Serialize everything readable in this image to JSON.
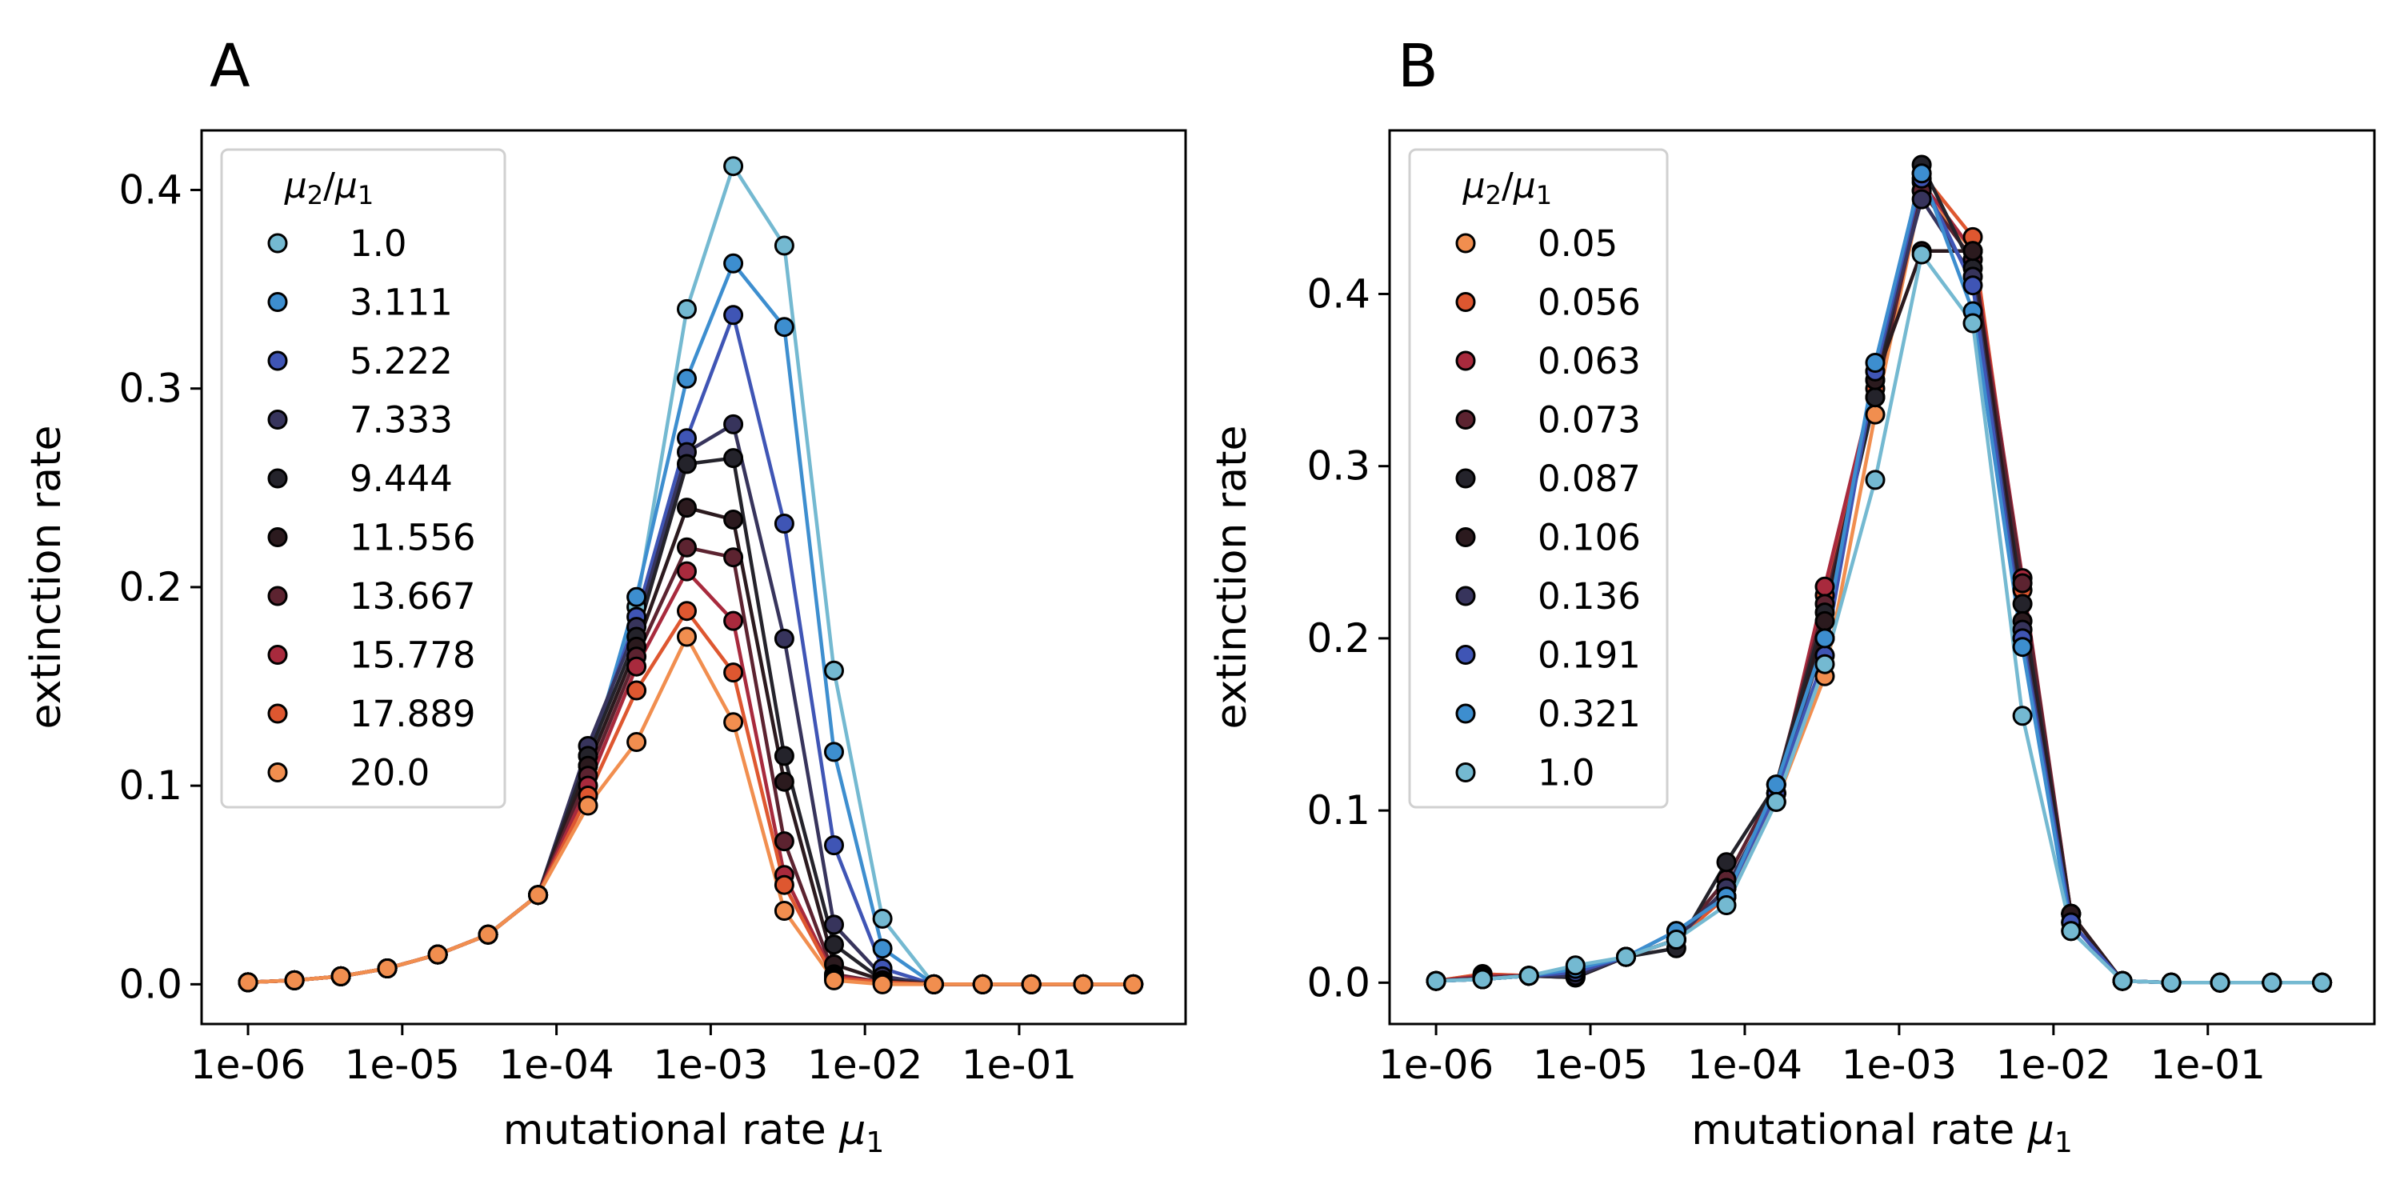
{
  "chart_data": [
    {
      "type": "line",
      "panel_label": "A",
      "xlabel": "mutational rate",
      "xlabel_symbol": "μ",
      "xlabel_sub": "1",
      "ylabel": "extinction rate",
      "xscale": "log",
      "xlim": [
        5e-07,
        1.2
      ],
      "ylim": [
        -0.02,
        0.43
      ],
      "xtick_values": [
        1e-06,
        1e-05,
        0.0001,
        0.001,
        0.01,
        0.1
      ],
      "xtick_labels": [
        "1e-06",
        "1e-05",
        "1e-04",
        "1e-03",
        "1e-02",
        "1e-01"
      ],
      "ytick_values": [
        0.0,
        0.1,
        0.2,
        0.3,
        0.4
      ],
      "ytick_labels": [
        "0.0",
        "0.1",
        "0.2",
        "0.3",
        "0.4"
      ],
      "x": [
        1e-06,
        2e-06,
        4e-06,
        8e-06,
        1.7e-05,
        3.6e-05,
        7.6e-05,
        0.00016,
        0.00033,
        0.0007,
        0.0014,
        0.003,
        0.0063,
        0.013,
        0.028,
        0.058,
        0.12,
        0.26,
        0.55
      ],
      "legend": {
        "title": "μ2/μ1",
        "title_symbol_a": "μ",
        "title_sub_a": "2",
        "title_symbol_b": "μ",
        "title_sub_b": "1",
        "placement": "upper-left"
      },
      "series": [
        {
          "name": "1.0",
          "color": "#74b9d1",
          "values": [
            0.001,
            0.002,
            0.004,
            0.008,
            0.015,
            0.025,
            0.045,
            0.11,
            0.19,
            0.34,
            0.412,
            0.372,
            0.158,
            0.033,
            0.0,
            0.0,
            0.0,
            0.0,
            0.0
          ]
        },
        {
          "name": "3.111",
          "color": "#3d8ecf",
          "values": [
            0.001,
            0.002,
            0.004,
            0.008,
            0.015,
            0.025,
            0.045,
            0.11,
            0.195,
            0.305,
            0.363,
            0.331,
            0.117,
            0.018,
            0.0,
            0.0,
            0.0,
            0.0,
            0.0
          ]
        },
        {
          "name": "5.222",
          "color": "#3f55b5",
          "values": [
            0.001,
            0.002,
            0.004,
            0.008,
            0.015,
            0.025,
            0.045,
            0.115,
            0.185,
            0.275,
            0.337,
            0.232,
            0.07,
            0.008,
            0.0,
            0.0,
            0.0,
            0.0,
            0.0
          ]
        },
        {
          "name": "7.333",
          "color": "#37345c",
          "values": [
            0.001,
            0.002,
            0.004,
            0.008,
            0.015,
            0.025,
            0.045,
            0.12,
            0.18,
            0.268,
            0.282,
            0.174,
            0.03,
            0.004,
            0.0,
            0.0,
            0.0,
            0.0,
            0.0
          ]
        },
        {
          "name": "9.444",
          "color": "#24232b",
          "values": [
            0.001,
            0.002,
            0.004,
            0.008,
            0.015,
            0.025,
            0.045,
            0.115,
            0.175,
            0.262,
            0.265,
            0.115,
            0.02,
            0.002,
            0.0,
            0.0,
            0.0,
            0.0,
            0.0
          ]
        },
        {
          "name": "11.556",
          "color": "#2b1a1e",
          "values": [
            0.001,
            0.002,
            0.004,
            0.008,
            0.015,
            0.025,
            0.045,
            0.11,
            0.17,
            0.24,
            0.234,
            0.102,
            0.01,
            0.002,
            0.0,
            0.0,
            0.0,
            0.0,
            0.0
          ]
        },
        {
          "name": "13.667",
          "color": "#5c2330",
          "values": [
            0.001,
            0.002,
            0.004,
            0.008,
            0.015,
            0.025,
            0.045,
            0.105,
            0.165,
            0.22,
            0.215,
            0.072,
            0.005,
            0.001,
            0.0,
            0.0,
            0.0,
            0.0,
            0.0
          ]
        },
        {
          "name": "15.778",
          "color": "#a82a3d",
          "values": [
            0.001,
            0.002,
            0.004,
            0.008,
            0.015,
            0.025,
            0.045,
            0.1,
            0.16,
            0.208,
            0.183,
            0.055,
            0.004,
            0.001,
            0.0,
            0.0,
            0.0,
            0.0,
            0.0
          ]
        },
        {
          "name": "17.889",
          "color": "#de5730",
          "values": [
            0.001,
            0.002,
            0.004,
            0.008,
            0.015,
            0.025,
            0.045,
            0.095,
            0.148,
            0.188,
            0.157,
            0.05,
            0.003,
            0.001,
            0.0,
            0.0,
            0.0,
            0.0,
            0.0
          ]
        },
        {
          "name": "20.0",
          "color": "#f18e4f",
          "values": [
            0.001,
            0.002,
            0.004,
            0.008,
            0.015,
            0.025,
            0.045,
            0.09,
            0.122,
            0.175,
            0.132,
            0.037,
            0.002,
            0.0,
            0.0,
            0.0,
            0.0,
            0.0,
            0.0
          ]
        }
      ]
    },
    {
      "type": "line",
      "panel_label": "B",
      "xlabel": "mutational rate",
      "xlabel_symbol": "μ",
      "xlabel_sub": "1",
      "ylabel": "extinction rate",
      "xscale": "log",
      "xlim": [
        5e-07,
        1.2
      ],
      "ylim": [
        -0.024,
        0.495
      ],
      "xtick_values": [
        1e-06,
        1e-05,
        0.0001,
        0.001,
        0.01,
        0.1
      ],
      "xtick_labels": [
        "1e-06",
        "1e-05",
        "1e-04",
        "1e-03",
        "1e-02",
        "1e-01"
      ],
      "ytick_values": [
        0.0,
        0.1,
        0.2,
        0.3,
        0.4
      ],
      "ytick_labels": [
        "0.0",
        "0.1",
        "0.2",
        "0.3",
        "0.4"
      ],
      "x": [
        1e-06,
        2e-06,
        4e-06,
        8e-06,
        1.7e-05,
        3.6e-05,
        7.6e-05,
        0.00016,
        0.00033,
        0.0007,
        0.0014,
        0.003,
        0.0063,
        0.013,
        0.028,
        0.058,
        0.12,
        0.26,
        0.55
      ],
      "legend": {
        "title": "μ2/μ1",
        "title_symbol_a": "μ",
        "title_sub_a": "2",
        "title_symbol_b": "μ",
        "title_sub_b": "1",
        "placement": "upper-left"
      },
      "series": [
        {
          "name": "0.05",
          "color": "#f18e4f",
          "values": [
            0.001,
            0.005,
            0.004,
            0.005,
            0.015,
            0.025,
            0.05,
            0.105,
            0.178,
            0.33,
            0.46,
            0.425,
            0.2,
            0.035,
            0.001,
            0.0,
            0.0,
            0.0,
            0.0
          ]
        },
        {
          "name": "0.056",
          "color": "#de5730",
          "values": [
            0.001,
            0.005,
            0.004,
            0.005,
            0.015,
            0.025,
            0.05,
            0.11,
            0.225,
            0.345,
            0.47,
            0.433,
            0.228,
            0.04,
            0.001,
            0.0,
            0.0,
            0.0,
            0.0
          ]
        },
        {
          "name": "0.063",
          "color": "#a82a3d",
          "values": [
            0.001,
            0.004,
            0.004,
            0.004,
            0.015,
            0.025,
            0.055,
            0.11,
            0.23,
            0.35,
            0.465,
            0.425,
            0.235,
            0.04,
            0.001,
            0.0,
            0.0,
            0.0,
            0.0
          ]
        },
        {
          "name": "0.073",
          "color": "#5c2330",
          "values": [
            0.001,
            0.003,
            0.004,
            0.003,
            0.015,
            0.025,
            0.06,
            0.115,
            0.22,
            0.34,
            0.46,
            0.42,
            0.232,
            0.04,
            0.001,
            0.0,
            0.0,
            0.0,
            0.0
          ]
        },
        {
          "name": "0.087",
          "color": "#24232b",
          "values": [
            0.001,
            0.002,
            0.004,
            0.003,
            0.015,
            0.02,
            0.07,
            0.115,
            0.215,
            0.34,
            0.475,
            0.415,
            0.22,
            0.04,
            0.001,
            0.0,
            0.0,
            0.0,
            0.0
          ]
        },
        {
          "name": "0.106",
          "color": "#2b1a1e",
          "values": [
            0.001,
            0.002,
            0.004,
            0.004,
            0.015,
            0.025,
            0.055,
            0.11,
            0.21,
            0.35,
            0.425,
            0.425,
            0.21,
            0.04,
            0.001,
            0.0,
            0.0,
            0.0,
            0.0
          ]
        },
        {
          "name": "0.136",
          "color": "#37345c",
          "values": [
            0.001,
            0.002,
            0.004,
            0.004,
            0.015,
            0.025,
            0.055,
            0.11,
            0.2,
            0.355,
            0.455,
            0.41,
            0.205,
            0.035,
            0.001,
            0.0,
            0.0,
            0.0,
            0.0
          ]
        },
        {
          "name": "0.191",
          "color": "#3f55b5",
          "values": [
            0.001,
            0.002,
            0.004,
            0.006,
            0.015,
            0.03,
            0.05,
            0.11,
            0.19,
            0.355,
            0.467,
            0.405,
            0.2,
            0.035,
            0.001,
            0.0,
            0.0,
            0.0,
            0.0
          ]
        },
        {
          "name": "0.321",
          "color": "#3d8ecf",
          "values": [
            0.001,
            0.002,
            0.004,
            0.008,
            0.015,
            0.03,
            0.05,
            0.115,
            0.2,
            0.36,
            0.47,
            0.39,
            0.195,
            0.03,
            0.001,
            0.0,
            0.0,
            0.0,
            0.0
          ]
        },
        {
          "name": "1.0",
          "color": "#74b9d1",
          "values": [
            0.001,
            0.002,
            0.004,
            0.01,
            0.015,
            0.025,
            0.045,
            0.105,
            0.185,
            0.292,
            0.423,
            0.383,
            0.155,
            0.03,
            0.001,
            0.0,
            0.0,
            0.0,
            0.0
          ]
        }
      ]
    }
  ]
}
